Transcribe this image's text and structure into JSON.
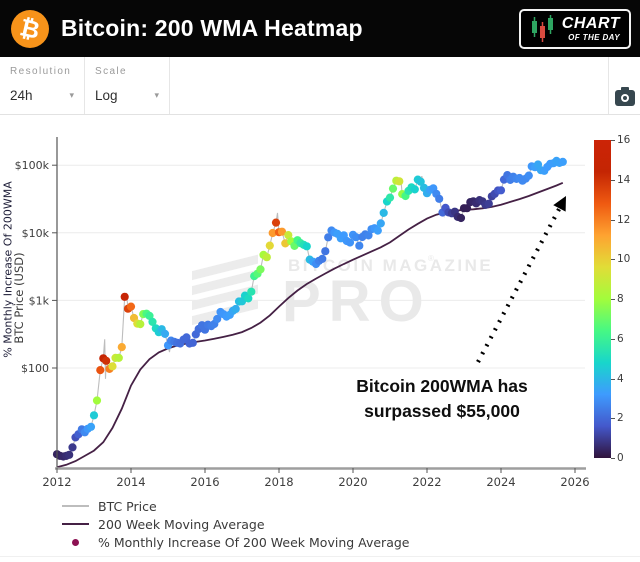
{
  "header": {
    "title": "Bitcoin: 200 WMA Heatmap",
    "logo_glyph": "₿",
    "badge": {
      "line1": "CHART",
      "line2": "OF THE DAY",
      "candle_green": "#2ea561",
      "candle_red": "#d94b3f"
    }
  },
  "toolbar": {
    "resolution_label": "Resolution",
    "resolution_value": "24h",
    "scale_label": "Scale",
    "scale_value": "Log"
  },
  "watermark": {
    "line1": "BITCOIN MAGAZINE",
    "reg": "®",
    "line2": "PRO"
  },
  "annotation": {
    "line1": "Bitcoin 200WMA has",
    "line2": "surpassed $55,000"
  },
  "legend": [
    {
      "label": "BTC Price",
      "marker": "line",
      "color": "#bdbdbd"
    },
    {
      "label": "200 Week Moving Average",
      "marker": "line",
      "color": "#452145"
    },
    {
      "label": "% Monthly Increase Of 200 Week Moving Average",
      "marker": "dot",
      "color": "#8c1152"
    }
  ],
  "chart_data": {
    "type": "scatter",
    "title": "Bitcoin: 200 WMA Heatmap",
    "ylabel": "BTC Price (USD)",
    "y_scale": "log",
    "xlim": [
      2012,
      2026
    ],
    "ylim": [
      3.3,
      260000
    ],
    "x_ticks": [
      2012,
      2014,
      2016,
      2018,
      2020,
      2022,
      2024,
      2026
    ],
    "y_ticks": [
      [
        100,
        "$100"
      ],
      [
        1000,
        "$1k"
      ],
      [
        10000,
        "$10k"
      ],
      [
        100000,
        "$100k"
      ]
    ],
    "grid": true,
    "legend_position": "bottom-left",
    "colorbar": {
      "label": "% Monthly Increase Of 200WMA",
      "min": 0,
      "max": 16,
      "ticks": [
        0,
        2,
        4,
        6,
        8,
        10,
        12,
        14,
        16
      ],
      "colormap": "turbo",
      "stops": [
        "#30123b",
        "#4458cb",
        "#3e9bfe",
        "#18d6cb",
        "#46f884",
        "#a2fc3c",
        "#e1dd37",
        "#fea331",
        "#ef5a11",
        "#c42503",
        "#cc2407"
      ]
    },
    "series": [
      {
        "name": "% Monthly Increase Of 200 Week Moving Average",
        "type": "scatter",
        "note": "points are [year, btc_price_usd, pct_monthly_increase_of_200wma]",
        "points": [
          [
            2012.0,
            5.3,
            0.4
          ],
          [
            2012.08,
            5.0,
            0.4
          ],
          [
            2012.17,
            4.9,
            0.5
          ],
          [
            2012.25,
            5.0,
            0.6
          ],
          [
            2012.33,
            5.2,
            0.7
          ],
          [
            2012.42,
            6.7,
            0.9
          ],
          [
            2012.5,
            9.4,
            1.4
          ],
          [
            2012.58,
            10.5,
            1.8
          ],
          [
            2012.67,
            12.4,
            2.4
          ],
          [
            2012.75,
            11.2,
            2.8
          ],
          [
            2012.83,
            12.6,
            3.1
          ],
          [
            2012.92,
            13.5,
            3.4
          ],
          [
            2013.0,
            20,
            4.5
          ],
          [
            2013.08,
            33,
            8.0
          ],
          [
            2013.17,
            93,
            13.0
          ],
          [
            2013.25,
            139,
            14.5
          ],
          [
            2013.33,
            128,
            14.0
          ],
          [
            2013.42,
            97,
            12.0
          ],
          [
            2013.5,
            106,
            9.5
          ],
          [
            2013.58,
            141,
            9.0
          ],
          [
            2013.67,
            141,
            8.5
          ],
          [
            2013.75,
            204,
            11.0
          ],
          [
            2013.83,
            1130,
            15.0
          ],
          [
            2013.92,
            755,
            13.5
          ],
          [
            2014.0,
            809,
            12.5
          ],
          [
            2014.08,
            550,
            10.5
          ],
          [
            2014.17,
            454,
            9.5
          ],
          [
            2014.25,
            446,
            8.5
          ],
          [
            2014.33,
            627,
            7.5
          ],
          [
            2014.42,
            635,
            6.5
          ],
          [
            2014.5,
            589,
            6.0
          ],
          [
            2014.58,
            481,
            5.5
          ],
          [
            2014.67,
            386,
            5.0
          ],
          [
            2014.75,
            338,
            4.5
          ],
          [
            2014.83,
            375,
            4.0
          ],
          [
            2014.92,
            320,
            3.6
          ],
          [
            2015.0,
            217,
            3.1
          ],
          [
            2015.08,
            254,
            2.7
          ],
          [
            2015.17,
            244,
            2.4
          ],
          [
            2015.25,
            236,
            2.2
          ],
          [
            2015.33,
            230,
            2.1
          ],
          [
            2015.42,
            263,
            2.0
          ],
          [
            2015.5,
            284,
            2.0
          ],
          [
            2015.58,
            230,
            1.9
          ],
          [
            2015.67,
            236,
            1.9
          ],
          [
            2015.75,
            314,
            2.0
          ],
          [
            2015.83,
            377,
            2.1
          ],
          [
            2015.92,
            430,
            2.3
          ],
          [
            2016.0,
            368,
            2.3
          ],
          [
            2016.08,
            437,
            2.4
          ],
          [
            2016.17,
            416,
            2.5
          ],
          [
            2016.25,
            448,
            2.6
          ],
          [
            2016.33,
            531,
            2.8
          ],
          [
            2016.42,
            673,
            3.0
          ],
          [
            2016.5,
            624,
            3.1
          ],
          [
            2016.58,
            575,
            3.2
          ],
          [
            2016.67,
            610,
            3.3
          ],
          [
            2016.75,
            700,
            3.5
          ],
          [
            2016.83,
            745,
            3.7
          ],
          [
            2016.92,
            963,
            4.1
          ],
          [
            2017.0,
            970,
            4.4
          ],
          [
            2017.08,
            1179,
            4.7
          ],
          [
            2017.17,
            1071,
            5.0
          ],
          [
            2017.25,
            1347,
            5.4
          ],
          [
            2017.33,
            2286,
            6.1
          ],
          [
            2017.42,
            2480,
            6.7
          ],
          [
            2017.5,
            2875,
            7.3
          ],
          [
            2017.58,
            4703,
            8.1
          ],
          [
            2017.67,
            4360,
            8.7
          ],
          [
            2017.75,
            6468,
            9.7
          ],
          [
            2017.83,
            9916,
            11.4
          ],
          [
            2017.92,
            14156,
            13.6
          ],
          [
            2018.0,
            10221,
            12.6
          ],
          [
            2018.08,
            10397,
            11.4
          ],
          [
            2018.17,
            6973,
            10.2
          ],
          [
            2018.25,
            9240,
            9.0
          ],
          [
            2018.33,
            7494,
            8.0
          ],
          [
            2018.42,
            6404,
            7.0
          ],
          [
            2018.5,
            7780,
            6.4
          ],
          [
            2018.58,
            7037,
            5.8
          ],
          [
            2018.67,
            6625,
            5.3
          ],
          [
            2018.75,
            6317,
            4.8
          ],
          [
            2018.83,
            4017,
            4.1
          ],
          [
            2018.92,
            3742,
            3.4
          ],
          [
            2019.0,
            3457,
            2.9
          ],
          [
            2019.08,
            3854,
            2.6
          ],
          [
            2019.17,
            4105,
            2.4
          ],
          [
            2019.25,
            5350,
            2.3
          ],
          [
            2019.33,
            8574,
            2.5
          ],
          [
            2019.42,
            10817,
            2.8
          ],
          [
            2019.5,
            10085,
            3.1
          ],
          [
            2019.58,
            9630,
            3.3
          ],
          [
            2019.67,
            8293,
            3.3
          ],
          [
            2019.75,
            9199,
            3.2
          ],
          [
            2019.83,
            7569,
            3.1
          ],
          [
            2019.92,
            7193,
            3.0
          ],
          [
            2020.0,
            9350,
            3.0
          ],
          [
            2020.08,
            8599,
            2.9
          ],
          [
            2020.17,
            6438,
            2.7
          ],
          [
            2020.25,
            8658,
            2.6
          ],
          [
            2020.33,
            9461,
            2.6
          ],
          [
            2020.42,
            9137,
            2.7
          ],
          [
            2020.5,
            11323,
            2.9
          ],
          [
            2020.58,
            11680,
            3.1
          ],
          [
            2020.67,
            10784,
            3.3
          ],
          [
            2020.75,
            13781,
            3.5
          ],
          [
            2020.83,
            19695,
            4.0
          ],
          [
            2020.92,
            28994,
            4.8
          ],
          [
            2021.0,
            33114,
            5.6
          ],
          [
            2021.08,
            45137,
            7.0
          ],
          [
            2021.17,
            58918,
            8.6
          ],
          [
            2021.25,
            57750,
            9.2
          ],
          [
            2021.33,
            37332,
            7.8
          ],
          [
            2021.42,
            35040,
            6.4
          ],
          [
            2021.5,
            41626,
            5.4
          ],
          [
            2021.58,
            47166,
            5.0
          ],
          [
            2021.67,
            43790,
            4.7
          ],
          [
            2021.75,
            61318,
            4.5
          ],
          [
            2021.83,
            57005,
            4.3
          ],
          [
            2021.92,
            46306,
            4.1
          ],
          [
            2022.0,
            38483,
            3.7
          ],
          [
            2022.08,
            43193,
            3.4
          ],
          [
            2022.17,
            45538,
            3.1
          ],
          [
            2022.25,
            37714,
            2.8
          ],
          [
            2022.33,
            31792,
            2.5
          ],
          [
            2022.42,
            19985,
            2.0
          ],
          [
            2022.5,
            23336,
            1.6
          ],
          [
            2022.58,
            20049,
            1.3
          ],
          [
            2022.67,
            19431,
            1.0
          ],
          [
            2022.75,
            20495,
            0.8
          ],
          [
            2022.83,
            17168,
            0.6
          ],
          [
            2022.92,
            16547,
            0.4
          ],
          [
            2023.0,
            23139,
            0.3
          ],
          [
            2023.08,
            23147,
            0.3
          ],
          [
            2023.17,
            28478,
            0.4
          ],
          [
            2023.25,
            29268,
            0.5
          ],
          [
            2023.33,
            27219,
            0.6
          ],
          [
            2023.42,
            30477,
            0.7
          ],
          [
            2023.5,
            29230,
            0.8
          ],
          [
            2023.58,
            25931,
            0.9
          ],
          [
            2023.67,
            26967,
            1.0
          ],
          [
            2023.75,
            34667,
            1.1
          ],
          [
            2023.83,
            37718,
            1.3
          ],
          [
            2023.92,
            42265,
            1.5
          ],
          [
            2024.0,
            42580,
            1.7
          ],
          [
            2024.08,
            61198,
            2.0
          ],
          [
            2024.17,
            71333,
            2.3
          ],
          [
            2024.25,
            60636,
            2.5
          ],
          [
            2024.33,
            67491,
            2.6
          ],
          [
            2024.42,
            62678,
            2.7
          ],
          [
            2024.5,
            64619,
            2.8
          ],
          [
            2024.58,
            58969,
            2.8
          ],
          [
            2024.67,
            63329,
            2.8
          ],
          [
            2024.75,
            70215,
            2.9
          ],
          [
            2024.83,
            96449,
            3.1
          ],
          [
            2024.92,
            93429,
            3.3
          ],
          [
            2025.0,
            102405,
            3.5
          ],
          [
            2025.08,
            84349,
            3.5
          ],
          [
            2025.17,
            82548,
            3.3
          ],
          [
            2025.25,
            94207,
            3.2
          ],
          [
            2025.33,
            104598,
            3.2
          ],
          [
            2025.42,
            107135,
            3.3
          ],
          [
            2025.5,
            115758,
            3.4
          ],
          [
            2025.58,
            108236,
            3.4
          ],
          [
            2025.67,
            112000,
            3.3
          ]
        ]
      },
      {
        "name": "BTC Price",
        "type": "line",
        "color": "#bdbdbd",
        "extra_points": [
          [
            2013.29,
            266
          ],
          [
            2013.31,
            69
          ],
          [
            2013.88,
            1242
          ],
          [
            2015.04,
            172
          ],
          [
            2017.96,
            19666
          ],
          [
            2021.29,
            64800
          ],
          [
            2021.86,
            69000
          ],
          [
            2022.46,
            17700
          ],
          [
            2024.2,
            73800
          ],
          [
            2025.05,
            109300
          ]
        ]
      },
      {
        "name": "200 Week Moving Average",
        "type": "line",
        "color": "#452145",
        "points": [
          [
            2012.0,
            3.4
          ],
          [
            2012.25,
            3.7
          ],
          [
            2012.5,
            4.2
          ],
          [
            2012.75,
            5.0
          ],
          [
            2013.0,
            6.0
          ],
          [
            2013.25,
            8
          ],
          [
            2013.5,
            13
          ],
          [
            2013.75,
            25
          ],
          [
            2014.0,
            55
          ],
          [
            2014.25,
            95
          ],
          [
            2014.5,
            135
          ],
          [
            2014.75,
            170
          ],
          [
            2015.0,
            195
          ],
          [
            2015.25,
            215
          ],
          [
            2015.5,
            230
          ],
          [
            2015.75,
            243
          ],
          [
            2016.0,
            255
          ],
          [
            2016.25,
            270
          ],
          [
            2016.5,
            288
          ],
          [
            2016.75,
            310
          ],
          [
            2017.0,
            340
          ],
          [
            2017.25,
            390
          ],
          [
            2017.5,
            470
          ],
          [
            2017.75,
            600
          ],
          [
            2018.0,
            810
          ],
          [
            2018.25,
            1080
          ],
          [
            2018.5,
            1400
          ],
          [
            2018.75,
            1750
          ],
          [
            2019.0,
            2100
          ],
          [
            2019.25,
            2500
          ],
          [
            2019.5,
            2950
          ],
          [
            2019.75,
            3450
          ],
          [
            2020.0,
            4000
          ],
          [
            2020.25,
            4600
          ],
          [
            2020.5,
            5300
          ],
          [
            2020.75,
            6100
          ],
          [
            2021.0,
            7200
          ],
          [
            2021.25,
            9000
          ],
          [
            2021.5,
            11200
          ],
          [
            2021.75,
            13600
          ],
          [
            2022.0,
            16200
          ],
          [
            2022.25,
            18500
          ],
          [
            2022.5,
            20200
          ],
          [
            2022.75,
            21200
          ],
          [
            2023.0,
            21800
          ],
          [
            2023.25,
            22300
          ],
          [
            2023.5,
            23000
          ],
          [
            2023.75,
            24200
          ],
          [
            2024.0,
            26000
          ],
          [
            2024.25,
            28600
          ],
          [
            2024.5,
            31500
          ],
          [
            2024.75,
            35000
          ],
          [
            2025.0,
            39500
          ],
          [
            2025.25,
            44500
          ],
          [
            2025.5,
            50000
          ],
          [
            2025.67,
            55000
          ]
        ]
      }
    ],
    "arrow": {
      "from": [
        478,
        247
      ],
      "to": [
        566,
        81
      ],
      "style": "dotted",
      "color": "#000000"
    }
  }
}
